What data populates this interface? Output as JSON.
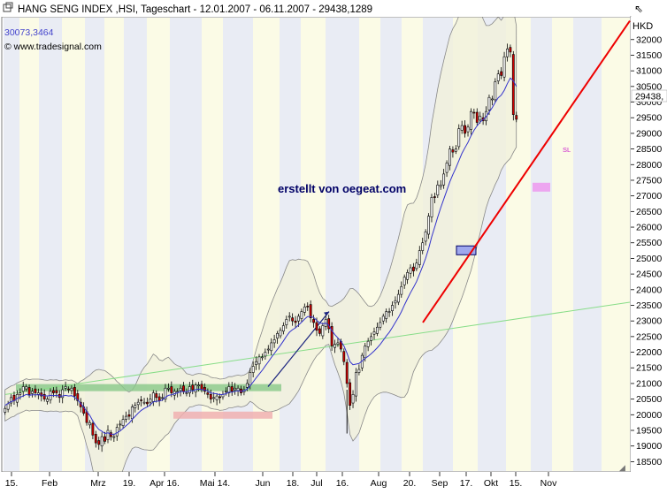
{
  "header": {
    "title": "HANG SENG INDEX ,HSI, Tageschart - 12.01.2007 - 06.11.2007 - 29438,1289",
    "value_readout": "30073,3464",
    "copyright": "© www.tradesignal.com",
    "window_icon": "window-restore-icon"
  },
  "chart_data": {
    "type": "candlestick",
    "currency_label": "HKD",
    "last_value_label": "29438,",
    "watermark": "erstellt von oegeat.com",
    "sl_label": "SL",
    "y_ticks": [
      18500,
      19000,
      19500,
      20000,
      20500,
      21000,
      21500,
      22000,
      22500,
      23000,
      23500,
      24000,
      24500,
      25000,
      25500,
      26000,
      26500,
      27000,
      27500,
      28000,
      28500,
      29000,
      29500,
      30000,
      30500,
      31000,
      31500,
      32000
    ],
    "y_tick_labels": [
      "18500",
      "19000",
      "19500",
      "20000",
      "20500",
      "21000",
      "21500",
      "22000",
      "22500",
      "23000",
      "23500",
      "24000",
      "24500",
      "25000",
      "25500",
      "26000",
      "26500",
      "27000",
      "27500",
      "28000",
      "28500",
      "29000",
      "29500",
      "30000",
      "30500",
      "31000",
      "31500",
      "32000"
    ],
    "ylim": [
      18200,
      32700
    ],
    "x_labels": [
      "15.",
      "Feb",
      "Mrz",
      "19.",
      "Apr 16.",
      "Mai 14.",
      "Jun",
      "18.",
      "Jul",
      "16.",
      "Aug",
      "20.",
      "Sep",
      "17.",
      "Okt",
      "15.",
      "Nov"
    ],
    "colors": {
      "up": "#ffffff",
      "down": "#cc0000",
      "ma": "#3333cc",
      "band_fill": "#f1f1dc",
      "trend_red": "#ee0000",
      "trend_green": "#88dd88",
      "zone_green": "#88c888",
      "zone_pink": "#f0b0b0",
      "box_blue": "#9fa8ee",
      "sl_box": "#ee88ee",
      "stripe_light": "#fbfbe6",
      "stripe_blue": "#e9ecf4"
    },
    "x_index_range": [
      0,
      206
    ],
    "closes": [
      20200,
      20350,
      20550,
      20450,
      20650,
      20700,
      20900,
      20900,
      20650,
      20750,
      20700,
      20700,
      20600,
      20500,
      20500,
      20750,
      20700,
      20700,
      20550,
      20800,
      20900,
      20800,
      20850,
      20600,
      20450,
      20250,
      20050,
      19750,
      19750,
      19350,
      19100,
      19050,
      19300,
      19150,
      19500,
      19300,
      19300,
      19600,
      19700,
      19850,
      19950,
      19950,
      20250,
      20300,
      20400,
      20450,
      20400,
      20350,
      20500,
      20700,
      20550,
      20450,
      20550,
      20850,
      20850,
      20700,
      20750,
      20750,
      20850,
      20750,
      20700,
      20900,
      20800,
      20950,
      20950,
      20800,
      20750,
      20650,
      20500,
      20550,
      20600,
      20550,
      20650,
      20750,
      20900,
      20750,
      20850,
      20850,
      20700,
      20800,
      21000,
      21350,
      21550,
      21700,
      21850,
      21850,
      22000,
      22100,
      22300,
      22400,
      22600,
      22700,
      22850,
      23050,
      23150,
      23000,
      22950,
      23150,
      23300,
      23450,
      23450,
      23100,
      22950,
      22700,
      22600,
      22850,
      23050,
      22750,
      22200,
      22250,
      22300,
      22100,
      21700,
      21000,
      20300,
      20650,
      21350,
      21450,
      21900,
      22200,
      22350,
      22500,
      22650,
      22800,
      22950,
      23150,
      23300,
      23300,
      23500,
      23650,
      23850,
      24100,
      24400,
      24550,
      24700,
      24600,
      24850,
      25250,
      25500,
      25850,
      26350,
      26950,
      26950,
      27350,
      27350,
      27700,
      28050,
      28500,
      28400,
      28500,
      29150,
      29250,
      29000,
      29200,
      29700,
      29650,
      29350,
      29550,
      29400,
      29700,
      30150,
      30100,
      30650,
      30900,
      30850,
      31450,
      31700,
      31600,
      29600,
      29450
    ],
    "ma_values": [
      20300,
      20360,
      20420,
      20450,
      20520,
      20560,
      20600,
      20650,
      20620,
      20640,
      20640,
      20640,
      20630,
      20610,
      20600,
      20620,
      20610,
      20620,
      20590,
      20600,
      20620,
      20600,
      20610,
      20560,
      20480,
      20360,
      20250,
      20100,
      19980,
      19800,
      19650,
      19530,
      19470,
      19400,
      19420,
      19380,
      19370,
      19420,
      19480,
      19560,
      19650,
      19730,
      19850,
      19950,
      20050,
      20140,
      20200,
      20250,
      20320,
      20410,
      20430,
      20440,
      20470,
      20560,
      20620,
      20640,
      20670,
      20700,
      20740,
      20740,
      20730,
      20770,
      20760,
      20800,
      20820,
      20810,
      20790,
      20760,
      20700,
      20680,
      20670,
      20640,
      20650,
      20670,
      20720,
      20720,
      20750,
      20770,
      20750,
      20770,
      20820,
      20930,
      21050,
      21180,
      21300,
      21420,
      21560,
      21690,
      21830,
      21960,
      22090,
      22220,
      22360,
      22510,
      22640,
      22720,
      22780,
      22870,
      22960,
      23060,
      23140,
      23140,
      23110,
      23020,
      22940,
      22910,
      22930,
      22870,
      22690,
      22560,
      22460,
      22350,
      22200,
      21970,
      21700,
      21600,
      21620,
      21640,
      21720,
      21800,
      21870,
      21950,
      22040,
      22140,
      22250,
      22380,
      22520,
      22640,
      22790,
      22950,
      23110,
      23300,
      23510,
      23710,
      23900,
      24070,
      24260,
      24500,
      24740,
      25000,
      25320,
      25690,
      26000,
      26320,
      26620,
      26900,
      27170,
      27450,
      27680,
      27890,
      28130,
      28360,
      28540,
      28710,
      28920,
      29100,
      29240,
      29360,
      29440,
      29530,
      29680,
      29820,
      29990,
      30140,
      30220,
      30380,
      30590,
      30770,
      30680,
      30500
    ]
  }
}
